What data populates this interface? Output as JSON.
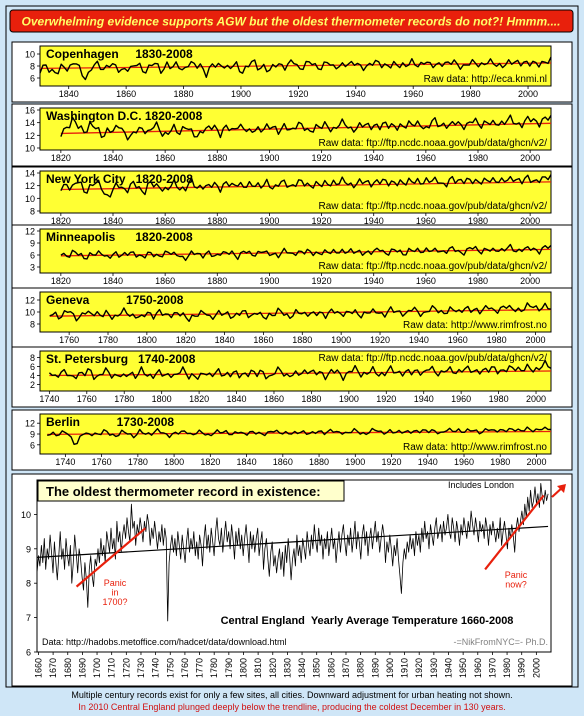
{
  "header": {
    "title": "Overwhelming evidence supports AGW but the oldest thermometer records do not?!  Hmmm...."
  },
  "footer": {
    "line1": "Multiple century records exist for only a few sites, all cities. Downward adjustment for urban heating not shown.",
    "line2": "In 2010 Central England plunged deeply below the trendline, producing the coldest December in 130 years."
  },
  "colors": {
    "header_bg": "#e8200c",
    "panel_bg": "#ffff33",
    "border": "#000000",
    "trend": "#e8200c",
    "arrow": "#e8200c",
    "background": "#cfe6f7",
    "footer_red": "#d01010"
  },
  "chart_data": [
    {
      "type": "line",
      "title": "Copenhagen     1830-2008",
      "source": "Raw data: http://eca.knmi.nl",
      "x_start": 1830,
      "x_end": 2008,
      "xlim": [
        1830,
        2008
      ],
      "x_ticks": [
        1840,
        1860,
        1880,
        1900,
        1920,
        1940,
        1960,
        1980,
        2000
      ],
      "ylim": [
        5,
        11
      ],
      "y_ticks": [
        6,
        8,
        10
      ],
      "mean": 7.9,
      "trend": [
        7.6,
        8.5
      ],
      "amplitude": 0.8,
      "values": [
        7.0,
        8.4,
        7.2,
        6.5,
        8.2,
        7.6,
        8.8,
        7.1,
        6.0,
        7.9,
        8.1,
        7.4,
        8.6,
        7.8,
        6.9,
        8.0,
        7.5,
        8.3,
        7.2,
        7.9,
        8.4,
        7.0,
        8.6,
        7.6,
        8.1,
        7.3,
        8.8,
        7.7,
        8.2,
        6.8,
        8.0,
        7.9,
        8.5,
        7.4,
        8.3,
        7.1,
        7.9,
        8.7,
        7.6,
        8.2,
        7.0,
        8.1,
        8.4,
        7.8,
        8.9,
        7.5,
        8.3,
        8.6,
        7.7,
        8.0,
        8.8,
        7.4,
        8.2,
        8.5,
        7.9,
        8.6,
        8.1,
        7.6,
        8.4,
        8.9,
        8.0,
        7.7,
        8.5,
        8.3,
        7.9,
        8.7,
        8.2,
        8.8,
        7.8,
        8.4,
        8.6,
        8.0,
        8.9,
        8.3,
        7.6,
        8.5,
        8.8,
        8.1,
        8.4,
        8.7,
        8.2,
        7.9,
        8.6,
        9.0,
        8.4,
        8.1,
        8.8,
        8.5,
        8.2,
        9.1
      ]
    },
    {
      "type": "line",
      "title": "Washington D.C. 1820-2008",
      "source": "Raw data: ftp://ftp.ncdc.noaa.gov/pub/data/ghcn/v2/",
      "x_start": 1820,
      "x_end": 2008,
      "xlim": [
        1812,
        2008
      ],
      "x_ticks": [
        1820,
        1840,
        1860,
        1880,
        1900,
        1920,
        1940,
        1960,
        1980,
        2000
      ],
      "ylim": [
        10,
        16
      ],
      "y_ticks": [
        10,
        12,
        14,
        16
      ],
      "mean": 13.0,
      "trend": [
        12.3,
        13.9
      ],
      "amplitude": 0.8,
      "values": [
        12.0,
        13.4,
        14.6,
        13.1,
        12.6,
        14.0,
        12.9,
        11.8,
        13.2,
        12.4,
        13.7,
        12.1,
        11.6,
        12.9,
        13.3,
        12.2,
        13.8,
        12.7,
        12.0,
        13.1,
        12.5,
        13.6,
        12.3,
        11.9,
        13.0,
        12.8,
        13.5,
        12.4,
        13.2,
        12.6,
        13.9,
        12.9,
        12.3,
        13.4,
        12.7,
        13.1,
        13.7,
        12.5,
        13.3,
        12.8,
        14.0,
        13.1,
        12.6,
        13.5,
        13.0,
        13.8,
        12.9,
        13.4,
        14.1,
        13.2,
        12.8,
        13.6,
        13.9,
        13.3,
        13.1,
        14.2,
        13.5,
        12.9,
        13.7,
        14.0,
        13.4,
        13.8,
        13.1,
        14.3,
        13.6,
        13.9,
        13.3,
        14.1,
        13.7,
        13.5,
        14.4,
        13.8,
        14.0,
        13.6,
        14.2,
        13.9,
        14.5,
        14.1,
        13.7,
        14.3,
        14.6,
        14.0,
        14.4,
        14.8
      ]
    },
    {
      "type": "line",
      "title": "New York City   1820-2008",
      "source": "Raw data: ftp://ftp.ncdc.noaa.gov/pub/data/ghcn/v2/",
      "x_start": 1820,
      "x_end": 2008,
      "xlim": [
        1812,
        2008
      ],
      "x_ticks": [
        1820,
        1840,
        1860,
        1880,
        1900,
        1920,
        1940,
        1960,
        1980,
        2000
      ],
      "ylim": [
        8,
        14
      ],
      "y_ticks": [
        8,
        10,
        12,
        14
      ],
      "mean": 11.8,
      "trend": [
        11.4,
        12.6
      ],
      "amplitude": 0.8,
      "values": [
        11.4,
        12.3,
        11.8,
        12.6,
        11.1,
        12.0,
        12.4,
        11.6,
        10.2,
        11.5,
        12.1,
        11.3,
        12.2,
        11.8,
        11.0,
        12.5,
        11.7,
        12.0,
        11.2,
        12.3,
        11.9,
        11.4,
        12.6,
        11.8,
        12.1,
        11.5,
        12.4,
        11.7,
        12.2,
        11.9,
        12.7,
        11.6,
        12.0,
        12.5,
        11.8,
        12.3,
        11.7,
        12.6,
        12.1,
        11.9,
        12.8,
        12.2,
        12.0,
        12.5,
        11.8,
        12.4,
        12.7,
        12.1,
        12.9,
        12.3,
        12.0,
        12.6,
        12.8,
        12.2,
        12.5,
        13.0,
        12.4,
        12.1,
        12.7,
        12.9,
        12.3,
        12.6,
        13.1,
        12.5,
        12.8,
        12.2,
        12.9,
        12.6,
        13.2,
        12.7,
        12.4,
        13.0,
        12.8,
        12.5,
        13.1,
        12.9,
        12.6,
        13.3,
        12.8,
        13.0,
        12.7,
        13.2,
        12.9,
        13.4
      ]
    },
    {
      "type": "line",
      "title": "Minneapolis      1820-2008",
      "source": "Raw data: ftp://ftp.ncdc.noaa.gov/pub/data/ghcn/v2/",
      "x_start": 1820,
      "x_end": 2008,
      "xlim": [
        1812,
        2008
      ],
      "x_ticks": [
        1820,
        1840,
        1860,
        1880,
        1900,
        1920,
        1940,
        1960,
        1980,
        2000
      ],
      "ylim": [
        2,
        12
      ],
      "y_ticks": [
        3,
        6,
        9,
        12
      ],
      "mean": 6.6,
      "trend": [
        5.8,
        7.4
      ],
      "amplitude": 0.9,
      "values": [
        6.2,
        5.8,
        6.9,
        6.0,
        5.3,
        6.4,
        5.9,
        6.6,
        5.5,
        6.1,
        5.7,
        6.8,
        6.3,
        5.6,
        6.0,
        6.5,
        5.4,
        6.2,
        6.9,
        5.8,
        6.4,
        4.9,
        6.1,
        6.7,
        5.9,
        6.3,
        5.6,
        6.8,
        6.2,
        6.5,
        5.7,
        6.9,
        6.1,
        6.4,
        7.0,
        6.0,
        6.6,
        5.8,
        7.1,
        6.3,
        6.8,
        6.2,
        7.3,
        6.5,
        6.0,
        6.9,
        7.2,
        6.4,
        6.7,
        7.5,
        6.6,
        6.2,
        7.0,
        6.8,
        7.3,
        6.5,
        7.1,
        6.9,
        6.3,
        7.4,
        6.8,
        7.0,
        7.6,
        6.7,
        7.2,
        6.9,
        7.5,
        7.1,
        6.6,
        7.3,
        7.8,
        7.0,
        7.4,
        6.8,
        7.6,
        7.2,
        7.9,
        7.1,
        7.5,
        7.3,
        7.7,
        7.0,
        7.8,
        8.0
      ]
    },
    {
      "type": "line",
      "title": "Geneva           1750-2008",
      "source": "Raw data: http://www.rimfrost.no",
      "x_start": 1750,
      "x_end": 2008,
      "xlim": [
        1745,
        2008
      ],
      "x_ticks": [
        1760,
        1780,
        1800,
        1820,
        1840,
        1860,
        1880,
        1900,
        1920,
        1940,
        1960,
        1980,
        2000
      ],
      "ylim": [
        7,
        13
      ],
      "y_ticks": [
        8,
        10,
        12
      ],
      "mean": 9.6,
      "trend": [
        9.3,
        10.4
      ],
      "amplitude": 0.7,
      "values": [
        9.4,
        9.8,
        9.2,
        10.1,
        9.6,
        9.0,
        9.9,
        9.5,
        10.2,
        9.3,
        9.7,
        9.1,
        9.8,
        10.0,
        9.4,
        9.6,
        8.9,
        9.8,
        9.5,
        10.1,
        9.2,
        9.7,
        9.9,
        9.3,
        8.8,
        9.6,
        9.4,
        10.0,
        9.1,
        9.7,
        9.5,
        9.9,
        9.2,
        9.6,
        10.1,
        9.4,
        9.8,
        9.0,
        9.7,
        9.5,
        10.2,
        9.6,
        9.3,
        9.9,
        9.7,
        10.0,
        9.4,
        9.8,
        9.6,
        10.3,
        9.5,
        9.9,
        10.1,
        9.7,
        9.4,
        10.2,
        9.8,
        10.0,
        9.6,
        10.4,
        9.9,
        10.1,
        9.7,
        10.5,
        10.0,
        9.8,
        10.3,
        10.6,
        10.1,
        9.9,
        10.4,
        10.2,
        10.7,
        10.0,
        10.5,
        10.3,
        10.8,
        10.1,
        10.6,
        10.9,
        10.4,
        10.7,
        10.2,
        10.9,
        11.1,
        10.6,
        10.8,
        10.5
      ]
    },
    {
      "type": "line",
      "title": "St. Petersburg   1740-2008",
      "source": "Raw data: ftp://ftp.ncdc.noaa.gov/pub/data/ghcn/v2/",
      "x_start": 1740,
      "x_end": 2008,
      "xlim": [
        1735,
        2008
      ],
      "x_ticks": [
        1740,
        1760,
        1780,
        1800,
        1820,
        1840,
        1860,
        1880,
        1900,
        1920,
        1940,
        1960,
        1980,
        2000
      ],
      "ylim": [
        1,
        9
      ],
      "y_ticks": [
        2,
        4,
        6,
        8
      ],
      "mean": 4.4,
      "trend": [
        4.0,
        5.0
      ],
      "amplitude": 1.0,
      "values": [
        4.6,
        3.8,
        5.0,
        4.2,
        3.4,
        4.8,
        4.0,
        5.2,
        3.6,
        4.4,
        4.9,
        3.9,
        4.5,
        3.2,
        4.7,
        4.1,
        5.1,
        3.7,
        4.3,
        4.8,
        3.5,
        4.6,
        4.0,
        5.3,
        3.9,
        4.4,
        3.1,
        4.7,
        4.2,
        5.0,
        3.8,
        4.5,
        4.9,
        3.6,
        4.3,
        5.2,
        4.0,
        4.7,
        3.7,
        4.6,
        5.1,
        4.1,
        4.4,
        3.9,
        4.8,
        5.4,
        4.2,
        4.6,
        4.0,
        5.0,
        4.5,
        3.8,
        4.9,
        5.3,
        4.3,
        4.7,
        5.1,
        4.1,
        4.6,
        5.5,
        4.4,
        4.8,
        5.0,
        4.2,
        5.2,
        4.7,
        5.6,
        4.5,
        4.9,
        5.3,
        4.6,
        5.1,
        5.7,
        4.8,
        5.0,
        5.4,
        4.7,
        5.8,
        5.2,
        4.9,
        5.5,
        6.0,
        5.1,
        5.6,
        5.3,
        5.9,
        6.4,
        5.7
      ]
    },
    {
      "type": "line",
      "title": "Berlin           1730-2008",
      "source": "Raw data: http://www.rimfrost.no",
      "x_start": 1730,
      "x_end": 2008,
      "xlim": [
        1726,
        2008
      ],
      "x_ticks": [
        1740,
        1760,
        1780,
        1800,
        1820,
        1840,
        1860,
        1880,
        1900,
        1920,
        1940,
        1960,
        1980,
        2000
      ],
      "ylim": [
        4,
        14
      ],
      "y_ticks": [
        6,
        9,
        12
      ],
      "mean": 9.2,
      "trend": [
        8.9,
        9.7
      ],
      "amplitude": 0.7,
      "values": [
        8.6,
        9.3,
        8.9,
        9.6,
        8.2,
        6.0,
        9.1,
        8.7,
        9.4,
        8.8,
        9.8,
        9.0,
        8.5,
        9.5,
        9.2,
        8.4,
        9.7,
        8.9,
        9.3,
        10.1,
        9.0,
        8.6,
        9.4,
        9.1,
        9.9,
        8.8,
        9.5,
        9.2,
        8.7,
        9.6,
        9.3,
        9.8,
        8.9,
        9.4,
        9.0,
        9.7,
        9.2,
        8.8,
        9.5,
        9.9,
        9.1,
        9.6,
        9.3,
        8.9,
        9.8,
        9.4,
        9.0,
        9.7,
        9.5,
        10.0,
        9.2,
        9.6,
        9.3,
        9.9,
        9.5,
        9.1,
        9.8,
        10.1,
        9.4,
        9.7,
        9.2,
        10.0,
        9.6,
        9.3,
        9.9,
        10.2,
        9.5,
        9.8,
        9.4,
        10.1,
        9.7,
        10.3,
        9.6,
        9.9,
        10.0,
        9.5,
        10.2,
        9.8,
        10.4,
        9.7,
        10.1,
        10.5,
        9.9,
        10.3,
        10.0,
        10.6,
        10.2,
        10.4
      ]
    },
    {
      "type": "line",
      "title": "The oldest thermometer record in existence:",
      "subtitle": "Central England  Yearly Average Temperature 1660-2008",
      "note": "Includes London",
      "source": "Data: http://hadobs.metoffice.com/hadcet/data/download.html",
      "credit": "-=NikFromNYC=-  Ph.D.",
      "annotation_left": [
        "Panic",
        "in",
        "1700?"
      ],
      "annotation_right": [
        "Panic",
        "now?"
      ],
      "x_start": 1659,
      "x_end": 2008,
      "xlim": [
        1659,
        2010
      ],
      "x_ticks": [
        1660,
        1670,
        1680,
        1690,
        1700,
        1710,
        1720,
        1730,
        1740,
        1750,
        1760,
        1770,
        1780,
        1790,
        1800,
        1810,
        1820,
        1830,
        1840,
        1850,
        1860,
        1870,
        1880,
        1890,
        1900,
        1910,
        1920,
        1930,
        1940,
        1950,
        1960,
        1970,
        1980,
        1990,
        2000
      ],
      "ylim": [
        6,
        11
      ],
      "y_ticks": [
        6,
        7,
        8,
        9,
        10
      ],
      "trend": [
        8.75,
        9.65
      ],
      "values": [
        8.3,
        8.8,
        8.5,
        9.1,
        8.6,
        9.3,
        8.4,
        9.0,
        8.7,
        9.4,
        8.9,
        8.3,
        9.2,
        8.6,
        8.1,
        8.8,
        9.5,
        8.7,
        9.0,
        8.4,
        9.3,
        8.8,
        8.5,
        9.1,
        8.0,
        8.6,
        9.4,
        8.9,
        8.3,
        9.0,
        8.7,
        8.2,
        7.8,
        8.6,
        8.1,
        7.3,
        8.4,
        8.8,
        8.2,
        7.9,
        8.7,
        8.5,
        9.0,
        8.6,
        9.3,
        8.8,
        9.1,
        8.6,
        9.5,
        9.2,
        8.9,
        9.6,
        9.0,
        9.3,
        8.7,
        9.8,
        9.2,
        9.5,
        8.9,
        9.4,
        9.7,
        9.3,
        9.9,
        9.5,
        9.2,
        10.3,
        9.6,
        9.8,
        9.1,
        9.7,
        9.4,
        9.9,
        9.6,
        9.2,
        9.8,
        9.5,
        10.0,
        9.7,
        9.1,
        9.6,
        9.3,
        9.8,
        9.4,
        9.0,
        9.5,
        9.2,
        9.7,
        9.1,
        9.6,
        9.3,
        6.9,
        8.6,
        9.1,
        9.4,
        8.9,
        9.3,
        8.8,
        9.5,
        9.1,
        8.7,
        9.4,
        9.0,
        8.6,
        9.2,
        9.6,
        8.9,
        9.3,
        9.0,
        9.5,
        8.8,
        9.2,
        8.7,
        9.4,
        9.1,
        8.5,
        9.3,
        9.7,
        9.0,
        9.4,
        8.9,
        9.6,
        9.2,
        8.8,
        9.5,
        9.9,
        9.3,
        9.1,
        9.6,
        8.9,
        9.4,
        9.8,
        9.2,
        9.5,
        9.0,
        9.7,
        9.3,
        8.7,
        9.5,
        9.1,
        9.6,
        9.0,
        9.4,
        8.8,
        9.3,
        9.7,
        9.2,
        8.6,
        9.5,
        9.0,
        9.4,
        8.9,
        9.3,
        9.6,
        8.8,
        9.2,
        9.5,
        8.4,
        9.0,
        9.3,
        8.7,
        8.2,
        8.9,
        9.2,
        8.5,
        8.8,
        8.3,
        8.7,
        9.0,
        8.4,
        8.9,
        8.2,
        9.1,
        8.6,
        9.3,
        8.8,
        8.1,
        8.7,
        9.0,
        8.5,
        9.4,
        8.8,
        9.1,
        8.6,
        9.3,
        9.0,
        8.7,
        9.5,
        9.1,
        8.8,
        9.4,
        9.0,
        9.7,
        9.2,
        8.9,
        9.6,
        9.1,
        9.4,
        8.7,
        9.3,
        9.0,
        9.5,
        8.8,
        9.2,
        9.6,
        9.0,
        9.3,
        8.6,
        9.1,
        9.5,
        8.9,
        9.4,
        9.7,
        9.2,
        8.8,
        9.4,
        9.1,
        9.6,
        8.9,
        9.3,
        9.8,
        9.0,
        9.5,
        9.2,
        8.7,
        9.4,
        9.7,
        9.1,
        9.5,
        8.8,
        9.3,
        9.6,
        9.0,
        9.4,
        9.8,
        9.2,
        9.5,
        8.9,
        9.3,
        9.7,
        9.4,
        8.6,
        9.2,
        8.9,
        9.4,
        9.0,
        8.5,
        9.1,
        8.8,
        9.3,
        8.7,
        8.2,
        7.7,
        8.6,
        9.0,
        8.7,
        9.2,
        8.9,
        9.4,
        9.0,
        9.3,
        8.8,
        9.5,
        9.1,
        9.4,
        8.9,
        9.6,
        9.2,
        9.8,
        9.3,
        9.5,
        9.0,
        9.7,
        9.4,
        9.1,
        9.6,
        9.9,
        9.3,
        9.5,
        9.7,
        9.2,
        9.8,
        9.4,
        9.6,
        10.0,
        9.5,
        9.3,
        9.9,
        9.6,
        9.2,
        9.8,
        9.5,
        9.1,
        9.7,
        9.4,
        9.9,
        9.6,
        9.3,
        9.8,
        9.5,
        10.1,
        9.7,
        9.4,
        9.9,
        9.6,
        9.2,
        9.8,
        9.5,
        9.7,
        9.3,
        9.9,
        9.6,
        9.1,
        9.7,
        9.4,
        9.8,
        9.5,
        9.2,
        9.6,
        9.3,
        9.9,
        9.1,
        9.5,
        9.8,
        9.4,
        9.0,
        9.6,
        9.3,
        9.7,
        9.4,
        8.9,
        9.6,
        9.9,
        9.5,
        9.8,
        10.1,
        9.7,
        10.3,
        9.9,
        10.5,
        10.1,
        10.7,
        10.2,
        10.4,
        10.8,
        10.3,
        10.6,
        10.2,
        10.9,
        10.5,
        10.3,
        10.7,
        10.4,
        10.6
      ]
    }
  ]
}
